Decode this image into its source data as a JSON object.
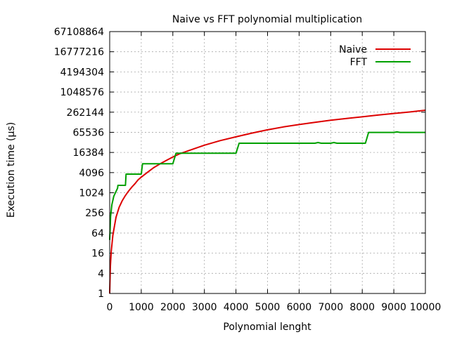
{
  "chart_data": {
    "type": "line",
    "title": "Naive vs FFT polynomial multiplication",
    "xlabel": "Polynomial lenght",
    "ylabel": "Execution time (µs)",
    "xlim": [
      0,
      10000
    ],
    "ylim": [
      1,
      67108864
    ],
    "y_scale": "log2",
    "grid": true,
    "legend_position": "top-right",
    "x_ticks": [
      0,
      1000,
      2000,
      3000,
      4000,
      5000,
      6000,
      7000,
      8000,
      9000,
      10000
    ],
    "x_tick_labels": [
      "0",
      "1000",
      "2000",
      "3000",
      "4000",
      "5000",
      "6000",
      "7000",
      "8000",
      "9000",
      "10000"
    ],
    "y_ticks": [
      1,
      4,
      16,
      64,
      256,
      1024,
      4096,
      16384,
      65536,
      262144,
      1048576,
      4194304,
      16777216,
      67108864
    ],
    "y_tick_labels": [
      "1",
      "4",
      "16",
      "64",
      "256",
      "1024",
      "4096",
      "16384",
      "65536",
      "262144",
      "1048576",
      "4194304",
      "16777216",
      "67108864"
    ],
    "series": [
      {
        "name": "Naive",
        "color": "#dd0000",
        "x": [
          1,
          20,
          50,
          100,
          200,
          300,
          400,
          500,
          600,
          700,
          800,
          900,
          1000,
          1200,
          1400,
          1600,
          1800,
          2000,
          2200,
          2500,
          3000,
          3500,
          4000,
          4500,
          5000,
          5500,
          6000,
          6500,
          7000,
          7500,
          8000,
          8500,
          9000,
          9500,
          10000
        ],
        "y": [
          1,
          6,
          18,
          55,
          190,
          380,
          600,
          850,
          1150,
          1500,
          1900,
          2500,
          3000,
          4200,
          5800,
          7500,
          9500,
          12000,
          14800,
          18500,
          27000,
          37000,
          48000,
          62000,
          78000,
          95000,
          112000,
          130000,
          150000,
          170000,
          190000,
          215000,
          240000,
          265000,
          300000
        ]
      },
      {
        "name": "FFT",
        "color": "#00a000",
        "x": [
          1,
          30,
          70,
          130,
          250,
          260,
          500,
          520,
          1000,
          1040,
          1600,
          2000,
          2100,
          4000,
          4100,
          6500,
          6600,
          6700,
          7000,
          7100,
          7200,
          8100,
          8200,
          9000,
          9100,
          9200,
          10000
        ],
        "y": [
          40,
          200,
          450,
          800,
          1400,
          1700,
          1700,
          3700,
          3700,
          7500,
          7500,
          7500,
          15500,
          15500,
          31000,
          31000,
          32500,
          31000,
          31000,
          32500,
          31000,
          31000,
          65000,
          65000,
          67500,
          65000,
          65000
        ]
      }
    ]
  }
}
